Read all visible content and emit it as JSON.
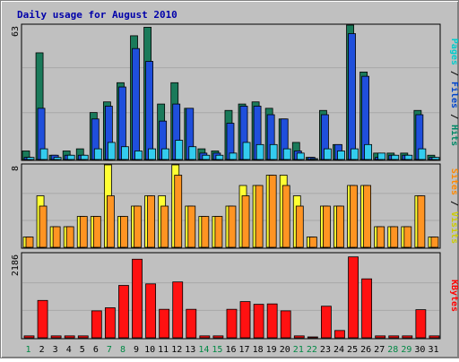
{
  "chart_data": {
    "type": "bar",
    "title": "Daily usage for August 2010",
    "categories": [
      "1",
      "2",
      "3",
      "4",
      "5",
      "6",
      "7",
      "8",
      "9",
      "10",
      "11",
      "12",
      "13",
      "14",
      "15",
      "16",
      "17",
      "18",
      "19",
      "20",
      "21",
      "22",
      "23",
      "24",
      "25",
      "26",
      "27",
      "28",
      "29",
      "30",
      "31"
    ],
    "weekend_days": [
      "1",
      "7",
      "8",
      "14",
      "15",
      "21",
      "22",
      "28",
      "29"
    ],
    "panels": [
      {
        "id": "hits",
        "ymax_label": "63",
        "ylim": [
          0,
          63
        ],
        "grid": true,
        "legend": [
          {
            "text": "Pages",
            "color": "#00cccc"
          },
          {
            "text": " / ",
            "color": "#000000"
          },
          {
            "text": "Files",
            "color": "#0044cc"
          },
          {
            "text": " / ",
            "color": "#000000"
          },
          {
            "text": "Hits",
            "color": "#008866"
          }
        ],
        "series": [
          {
            "name": "Hits",
            "color": "#1a7a5a",
            "values": [
              4,
              50,
              2,
              4,
              5,
              22,
              27,
              36,
              58,
              62,
              26,
              36,
              24,
              5,
              4,
              23,
              26,
              27,
              24,
              19,
              8,
              1,
              23,
              7,
              63,
              41,
              3,
              3,
              3,
              23,
              2
            ]
          },
          {
            "name": "Files",
            "color": "#1f4fdc",
            "values": [
              1,
              24,
              2,
              2,
              2,
              19,
              25,
              34,
              52,
              46,
              18,
              26,
              24,
              3,
              3,
              17,
              25,
              25,
              21,
              19,
              4,
              1,
              21,
              7,
              59,
              39,
              1,
              2,
              2,
              21,
              1
            ]
          },
          {
            "name": "Pages",
            "color": "#33ccee",
            "values": [
              1,
              5,
              1,
              2,
              2,
              5,
              8,
              6,
              4,
              5,
              5,
              9,
              6,
              2,
              2,
              3,
              8,
              7,
              7,
              5,
              3,
              0,
              5,
              4,
              5,
              7,
              3,
              2,
              2,
              5,
              1
            ]
          }
        ]
      },
      {
        "id": "visits",
        "ymax_label": "8",
        "ylim": [
          0,
          8
        ],
        "grid": true,
        "legend": [
          {
            "text": "Sites",
            "color": "#ff8800"
          },
          {
            "text": " / ",
            "color": "#000000"
          },
          {
            "text": "Visits",
            "color": "#cccc00"
          }
        ],
        "series": [
          {
            "name": "Visits",
            "color": "#ffff33",
            "values": [
              1,
              5,
              2,
              2,
              3,
              3,
              8,
              3,
              4,
              5,
              5,
              8,
              4,
              3,
              3,
              4,
              6,
              6,
              7,
              7,
              5,
              1,
              4,
              4,
              6,
              6,
              2,
              2,
              2,
              5,
              1
            ]
          },
          {
            "name": "Sites",
            "color": "#ff9422",
            "values": [
              1,
              4,
              2,
              2,
              3,
              3,
              5,
              3,
              4,
              5,
              4,
              7,
              4,
              3,
              3,
              4,
              5,
              6,
              7,
              6,
              4,
              1,
              4,
              4,
              6,
              6,
              2,
              2,
              2,
              5,
              1
            ]
          }
        ]
      },
      {
        "id": "kbytes",
        "ymax_label": "2186",
        "ylim": [
          0,
          2186
        ],
        "grid": true,
        "legend": [
          {
            "text": "KBytes",
            "color": "#ff0000"
          }
        ],
        "series": [
          {
            "name": "KBytes",
            "color": "#ff1111",
            "values": [
              50,
              970,
              50,
              50,
              50,
              700,
              780,
              1360,
              2040,
              1400,
              740,
              1450,
              740,
              50,
              50,
              740,
              940,
              870,
              880,
              700,
              50,
              20,
              820,
              190,
              2100,
              1530,
              50,
              50,
              50,
              730,
              50
            ]
          }
        ]
      }
    ]
  }
}
